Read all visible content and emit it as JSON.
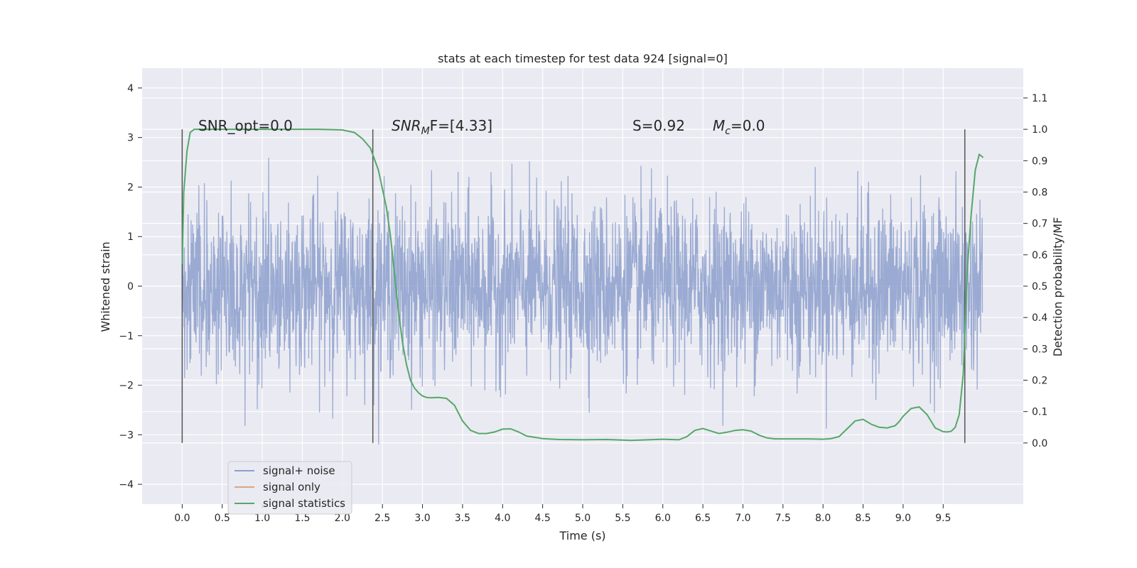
{
  "chart_data": {
    "type": "line",
    "title": "stats at each timestep for test data 924 [signal=0]",
    "xlabel": "Time (s)",
    "ylabel": "Whitened strain",
    "ylabel_right": "Detection probability/MF",
    "xlim": [
      -0.5,
      10.5
    ],
    "ylim": [
      -4.4,
      4.4
    ],
    "ylim_right": [
      -0.195,
      1.195
    ],
    "x_ticks": [
      "0.0",
      "0.5",
      "1.0",
      "1.5",
      "2.0",
      "2.5",
      "3.0",
      "3.5",
      "4.0",
      "4.5",
      "5.0",
      "5.5",
      "6.0",
      "6.5",
      "7.0",
      "7.5",
      "8.0",
      "8.5",
      "9.0",
      "9.5"
    ],
    "y_ticks_left": [
      "−4",
      "−3",
      "−2",
      "−1",
      "0",
      "1",
      "2",
      "3",
      "4"
    ],
    "y_ticks_right": [
      "0.0",
      "0.1",
      "0.2",
      "0.3",
      "0.4",
      "0.5",
      "0.6",
      "0.7",
      "0.8",
      "0.9",
      "1.0",
      "1.1"
    ],
    "annotations": {
      "snr_opt": "SNR_opt=0.0",
      "snr_mf_main": "SNR",
      "snr_mf_sub": "M",
      "snr_mf_tail": "F=[4.33]",
      "s_stat": "S=0.92",
      "mc_main": "M",
      "mc_sub": "c",
      "mc_tail": "=0.0"
    },
    "vertical_markers_x": [
      0.0,
      2.38,
      9.77
    ],
    "series": [
      {
        "name": "signal+ noise",
        "color": "#8c9fcc",
        "noise_sigma": 0.85,
        "x_range": [
          0,
          9.99
        ]
      },
      {
        "name": "signal only",
        "color": "#dd8452",
        "values": []
      },
      {
        "name": "signal statistics",
        "color": "#55a868",
        "x": [
          0.0,
          0.02,
          0.06,
          0.1,
          0.15,
          0.3,
          0.5,
          1.0,
          1.5,
          1.7,
          2.0,
          2.15,
          2.25,
          2.35,
          2.45,
          2.55,
          2.6,
          2.65,
          2.7,
          2.75,
          2.8,
          2.85,
          2.9,
          2.95,
          3.0,
          3.05,
          3.1,
          3.2,
          3.3,
          3.4,
          3.5,
          3.6,
          3.7,
          3.8,
          3.9,
          4.0,
          4.1,
          4.2,
          4.3,
          4.5,
          4.7,
          5.0,
          5.3,
          5.6,
          6.0,
          6.2,
          6.3,
          6.4,
          6.5,
          6.6,
          6.7,
          6.8,
          6.9,
          7.0,
          7.1,
          7.2,
          7.3,
          7.4,
          7.6,
          7.8,
          8.0,
          8.1,
          8.2,
          8.3,
          8.4,
          8.5,
          8.6,
          8.7,
          8.8,
          8.9,
          8.95,
          9.0,
          9.1,
          9.2,
          9.3,
          9.4,
          9.5,
          9.55,
          9.6,
          9.65,
          9.7,
          9.75,
          9.8,
          9.85,
          9.9,
          9.95,
          10.0
        ],
        "values": [
          0.57,
          0.8,
          0.93,
          0.99,
          1.0,
          1.0,
          1.0,
          1.0,
          1.0,
          1.0,
          0.998,
          0.99,
          0.97,
          0.94,
          0.87,
          0.75,
          0.66,
          0.54,
          0.42,
          0.32,
          0.25,
          0.2,
          0.175,
          0.16,
          0.15,
          0.145,
          0.144,
          0.145,
          0.142,
          0.12,
          0.07,
          0.04,
          0.03,
          0.03,
          0.035,
          0.044,
          0.045,
          0.035,
          0.022,
          0.014,
          0.011,
          0.01,
          0.011,
          0.008,
          0.012,
          0.01,
          0.02,
          0.04,
          0.046,
          0.038,
          0.03,
          0.034,
          0.04,
          0.042,
          0.038,
          0.025,
          0.016,
          0.013,
          0.013,
          0.013,
          0.012,
          0.014,
          0.02,
          0.045,
          0.07,
          0.075,
          0.06,
          0.05,
          0.048,
          0.055,
          0.068,
          0.085,
          0.11,
          0.115,
          0.09,
          0.048,
          0.036,
          0.035,
          0.037,
          0.05,
          0.09,
          0.22,
          0.55,
          0.73,
          0.87,
          0.92,
          0.91
        ]
      }
    ],
    "legend_location": "lower left",
    "grid": true
  }
}
